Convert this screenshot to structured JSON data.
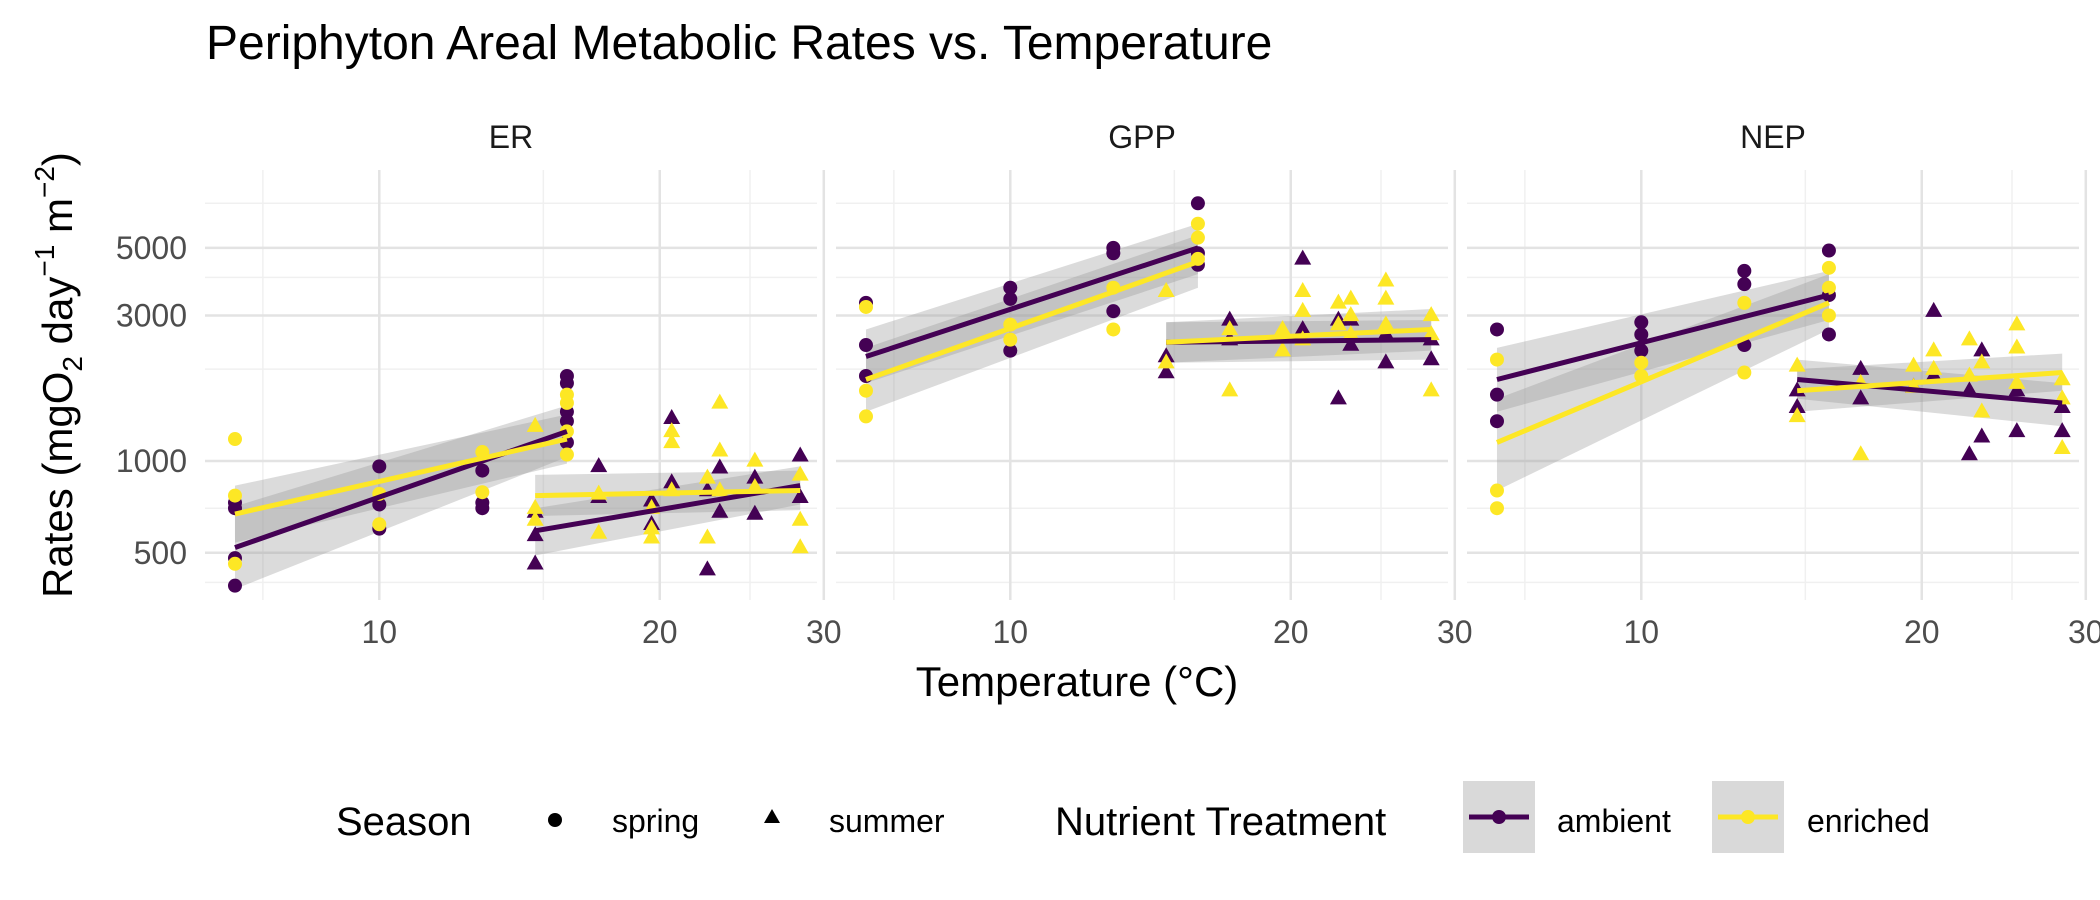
{
  "chart_data": {
    "type": "scatter",
    "title": "Periphyton Areal Metabolic Rates vs. Temperature",
    "xlabel": "Temperature (°C)",
    "ylabel": {
      "main": "Rates (mgO",
      "sub": "2",
      "day": " day",
      "exp1": "−1",
      "m": " m",
      "exp2": "−2",
      "close": ")"
    },
    "x_scale": "log",
    "y_scale": "log",
    "xlim": [
      6.5,
      29.5
    ],
    "ylim": [
      350,
      9000
    ],
    "x_ticks": [
      10,
      20,
      30
    ],
    "y_ticks": [
      500,
      1000,
      3000,
      5000
    ],
    "colors": {
      "ambient": "#440154",
      "enriched": "#FDE725"
    },
    "legend": {
      "position": "bottom",
      "season_title": "Season",
      "season_items": [
        {
          "label": "spring",
          "shape": "circle"
        },
        {
          "label": "summer",
          "shape": "triangle"
        }
      ],
      "treatment_title": "Nutrient Treatment",
      "treatment_items": [
        {
          "label": "ambient",
          "color": "#440154"
        },
        {
          "label": "enriched",
          "color": "#FDE725"
        }
      ]
    },
    "panels": [
      {
        "name": "ER",
        "points": [
          {
            "treatment": "ambient",
            "season": "spring",
            "x": [
              7,
              7,
              7,
              7,
              10,
              10,
              10,
              12.9,
              12.9,
              12.9,
              15.9,
              15.9,
              15.9,
              15.9,
              15.9
            ],
            "y": [
              480,
              390,
              700,
              730,
              960,
              720,
              600,
              930,
              700,
              730,
              1900,
              1800,
              1450,
              1350,
              1150
            ]
          },
          {
            "treatment": "enriched",
            "season": "spring",
            "x": [
              7,
              7,
              7,
              10,
              10,
              12.9,
              12.9,
              15.9,
              15.9,
              15.9,
              15.9
            ],
            "y": [
              1180,
              770,
              460,
              780,
              620,
              1070,
              790,
              1650,
              1550,
              1250,
              1050
            ]
          },
          {
            "treatment": "ambient",
            "season": "summer",
            "x": [
              14.7,
              14.7,
              14.7,
              17.2,
              17.2,
              19.6,
              19.6,
              20.6,
              20.6,
              22.5,
              22.5,
              23.2,
              23.2,
              25.3,
              25.3,
              28.3,
              28.3
            ],
            "y": [
              460,
              570,
              680,
              960,
              760,
              620,
              740,
              1380,
              850,
              440,
              800,
              950,
              680,
              880,
              670,
              1040,
              760
            ]
          },
          {
            "treatment": "enriched",
            "season": "summer",
            "x": [
              14.7,
              14.7,
              14.7,
              17.2,
              17.2,
              19.6,
              19.6,
              19.6,
              20.6,
              20.6,
              20.6,
              22.5,
              22.5,
              23.2,
              23.2,
              23.2,
              25.3,
              25.3,
              28.3,
              28.3,
              28.3
            ],
            "y": [
              1300,
              700,
              640,
              780,
              580,
              560,
              600,
              700,
              1250,
              1150,
              800,
              560,
              880,
              1550,
              1080,
              800,
              1000,
              820,
              520,
              640,
              900
            ]
          }
        ],
        "fits": [
          {
            "treatment": "ambient",
            "season": "spring",
            "x": [
              7,
              15.9
            ],
            "y": [
              520,
              1250
            ],
            "ci_low": [
              380,
              1030
            ],
            "ci_high": [
              710,
              1520
            ]
          },
          {
            "treatment": "enriched",
            "season": "spring",
            "x": [
              7,
              15.9
            ],
            "y": [
              670,
              1180
            ],
            "ci_low": [
              540,
              980
            ],
            "ci_high": [
              830,
              1420
            ]
          },
          {
            "treatment": "ambient",
            "season": "summer",
            "x": [
              14.7,
              28.3
            ],
            "y": [
              590,
              830
            ],
            "ci_low": [
              490,
              720
            ],
            "ci_high": [
              700,
              960
            ]
          },
          {
            "treatment": "enriched",
            "season": "summer",
            "x": [
              14.7,
              28.3
            ],
            "y": [
              770,
              800
            ],
            "ci_low": [
              660,
              690
            ],
            "ci_high": [
              900,
              930
            ]
          }
        ]
      },
      {
        "name": "GPP",
        "points": [
          {
            "treatment": "ambient",
            "season": "spring",
            "x": [
              7,
              7,
              7,
              10,
              10,
              10,
              12.9,
              12.9,
              12.9,
              15.9,
              15.9,
              15.9
            ],
            "y": [
              3300,
              2400,
              1900,
              3700,
              3400,
              2300,
              5000,
              4800,
              3100,
              7000,
              4800,
              4400
            ]
          },
          {
            "treatment": "enriched",
            "season": "spring",
            "x": [
              7,
              7,
              7,
              10,
              10,
              12.9,
              12.9,
              15.9,
              15.9,
              15.9
            ],
            "y": [
              3200,
              1700,
              1400,
              2800,
              2500,
              3700,
              2700,
              6000,
              5400,
              4600
            ]
          },
          {
            "treatment": "ambient",
            "season": "summer",
            "x": [
              14.7,
              14.7,
              17.2,
              17.2,
              19.6,
              20.6,
              20.6,
              22.5,
              22.5,
              23.2,
              23.2,
              25.3,
              25.3,
              28.3,
              28.3
            ],
            "y": [
              2200,
              1950,
              2900,
              2500,
              2600,
              4600,
              2700,
              1600,
              2900,
              2400,
              2900,
              2100,
              2600,
              2150,
              2500
            ]
          },
          {
            "treatment": "enriched",
            "season": "summer",
            "x": [
              14.7,
              14.7,
              17.2,
              17.2,
              19.6,
              19.6,
              20.6,
              20.6,
              20.6,
              22.5,
              22.5,
              23.2,
              23.2,
              23.2,
              25.3,
              25.3,
              25.3,
              28.3,
              28.3,
              28.3
            ],
            "y": [
              3600,
              2100,
              2700,
              1700,
              2700,
              2300,
              3600,
              3100,
              2500,
              3300,
              2800,
              3400,
              3000,
              2600,
              3900,
              3400,
              2800,
              3000,
              2600,
              1700
            ]
          }
        ],
        "fits": [
          {
            "treatment": "ambient",
            "season": "spring",
            "x": [
              7,
              15.9
            ],
            "y": [
              2200,
              5000
            ],
            "ci_low": [
              1800,
              4100
            ],
            "ci_high": [
              2700,
              6000
            ]
          },
          {
            "treatment": "enriched",
            "season": "spring",
            "x": [
              7,
              15.9
            ],
            "y": [
              1850,
              4500
            ],
            "ci_low": [
              1450,
              3700
            ],
            "ci_high": [
              2350,
              5500
            ]
          },
          {
            "treatment": "ambient",
            "season": "summer",
            "x": [
              14.7,
              28.3
            ],
            "y": [
              2450,
              2500
            ],
            "ci_low": [
              2100,
              2150
            ],
            "ci_high": [
              2850,
              2900
            ]
          },
          {
            "treatment": "enriched",
            "season": "summer",
            "x": [
              14.7,
              28.3
            ],
            "y": [
              2450,
              2700
            ],
            "ci_low": [
              2100,
              2300
            ],
            "ci_high": [
              2850,
              3150
            ]
          }
        ]
      },
      {
        "name": "NEP",
        "points": [
          {
            "treatment": "ambient",
            "season": "spring",
            "x": [
              7,
              7,
              7,
              10,
              10,
              10,
              12.9,
              12.9,
              12.9,
              15.9,
              15.9,
              15.9
            ],
            "y": [
              2700,
              1650,
              1350,
              2850,
              2600,
              2300,
              4200,
              3800,
              2400,
              4900,
              3500,
              2600
            ]
          },
          {
            "treatment": "enriched",
            "season": "spring",
            "x": [
              7,
              7,
              7,
              10,
              10,
              12.9,
              12.9,
              15.9,
              15.9,
              15.9
            ],
            "y": [
              2150,
              800,
              700,
              2100,
              1900,
              3300,
              1950,
              4300,
              3700,
              3000
            ]
          },
          {
            "treatment": "ambient",
            "season": "summer",
            "x": [
              14.7,
              14.7,
              17.2,
              17.2,
              19.6,
              20.6,
              20.6,
              22.5,
              22.5,
              23.2,
              23.2,
              25.3,
              25.3,
              28.3,
              28.3
            ],
            "y": [
              1500,
              1700,
              2000,
              1600,
              1750,
              3100,
              1900,
              1050,
              1700,
              2300,
              1200,
              1250,
              1700,
              1250,
              1500
            ]
          },
          {
            "treatment": "enriched",
            "season": "summer",
            "x": [
              14.7,
              14.7,
              17.2,
              17.2,
              19.6,
              19.6,
              20.6,
              20.6,
              22.5,
              22.5,
              23.2,
              23.2,
              25.3,
              25.3,
              25.3,
              28.3,
              28.3,
              28.3
            ],
            "y": [
              2050,
              1400,
              1050,
              1800,
              2050,
              1750,
              2300,
              2000,
              2500,
              1900,
              2100,
              1450,
              2800,
              2350,
              1800,
              1850,
              1600,
              1100
            ]
          }
        ],
        "fits": [
          {
            "treatment": "ambient",
            "season": "spring",
            "x": [
              7,
              15.9
            ],
            "y": [
              1850,
              3500
            ],
            "ci_low": [
              1450,
              2900
            ],
            "ci_high": [
              2350,
              4200
            ]
          },
          {
            "treatment": "enriched",
            "season": "spring",
            "x": [
              7,
              15.9
            ],
            "y": [
              1150,
              3300
            ],
            "ci_low": [
              800,
              2700
            ],
            "ci_high": [
              1600,
              4100
            ]
          },
          {
            "treatment": "ambient",
            "season": "summer",
            "x": [
              14.7,
              28.3
            ],
            "y": [
              1850,
              1550
            ],
            "ci_low": [
              1600,
              1300
            ],
            "ci_high": [
              2150,
              1800
            ]
          },
          {
            "treatment": "enriched",
            "season": "summer",
            "x": [
              14.7,
              28.3
            ],
            "y": [
              1700,
              1950
            ],
            "ci_low": [
              1450,
              1700
            ],
            "ci_high": [
              2000,
              2250
            ]
          }
        ]
      }
    ]
  }
}
